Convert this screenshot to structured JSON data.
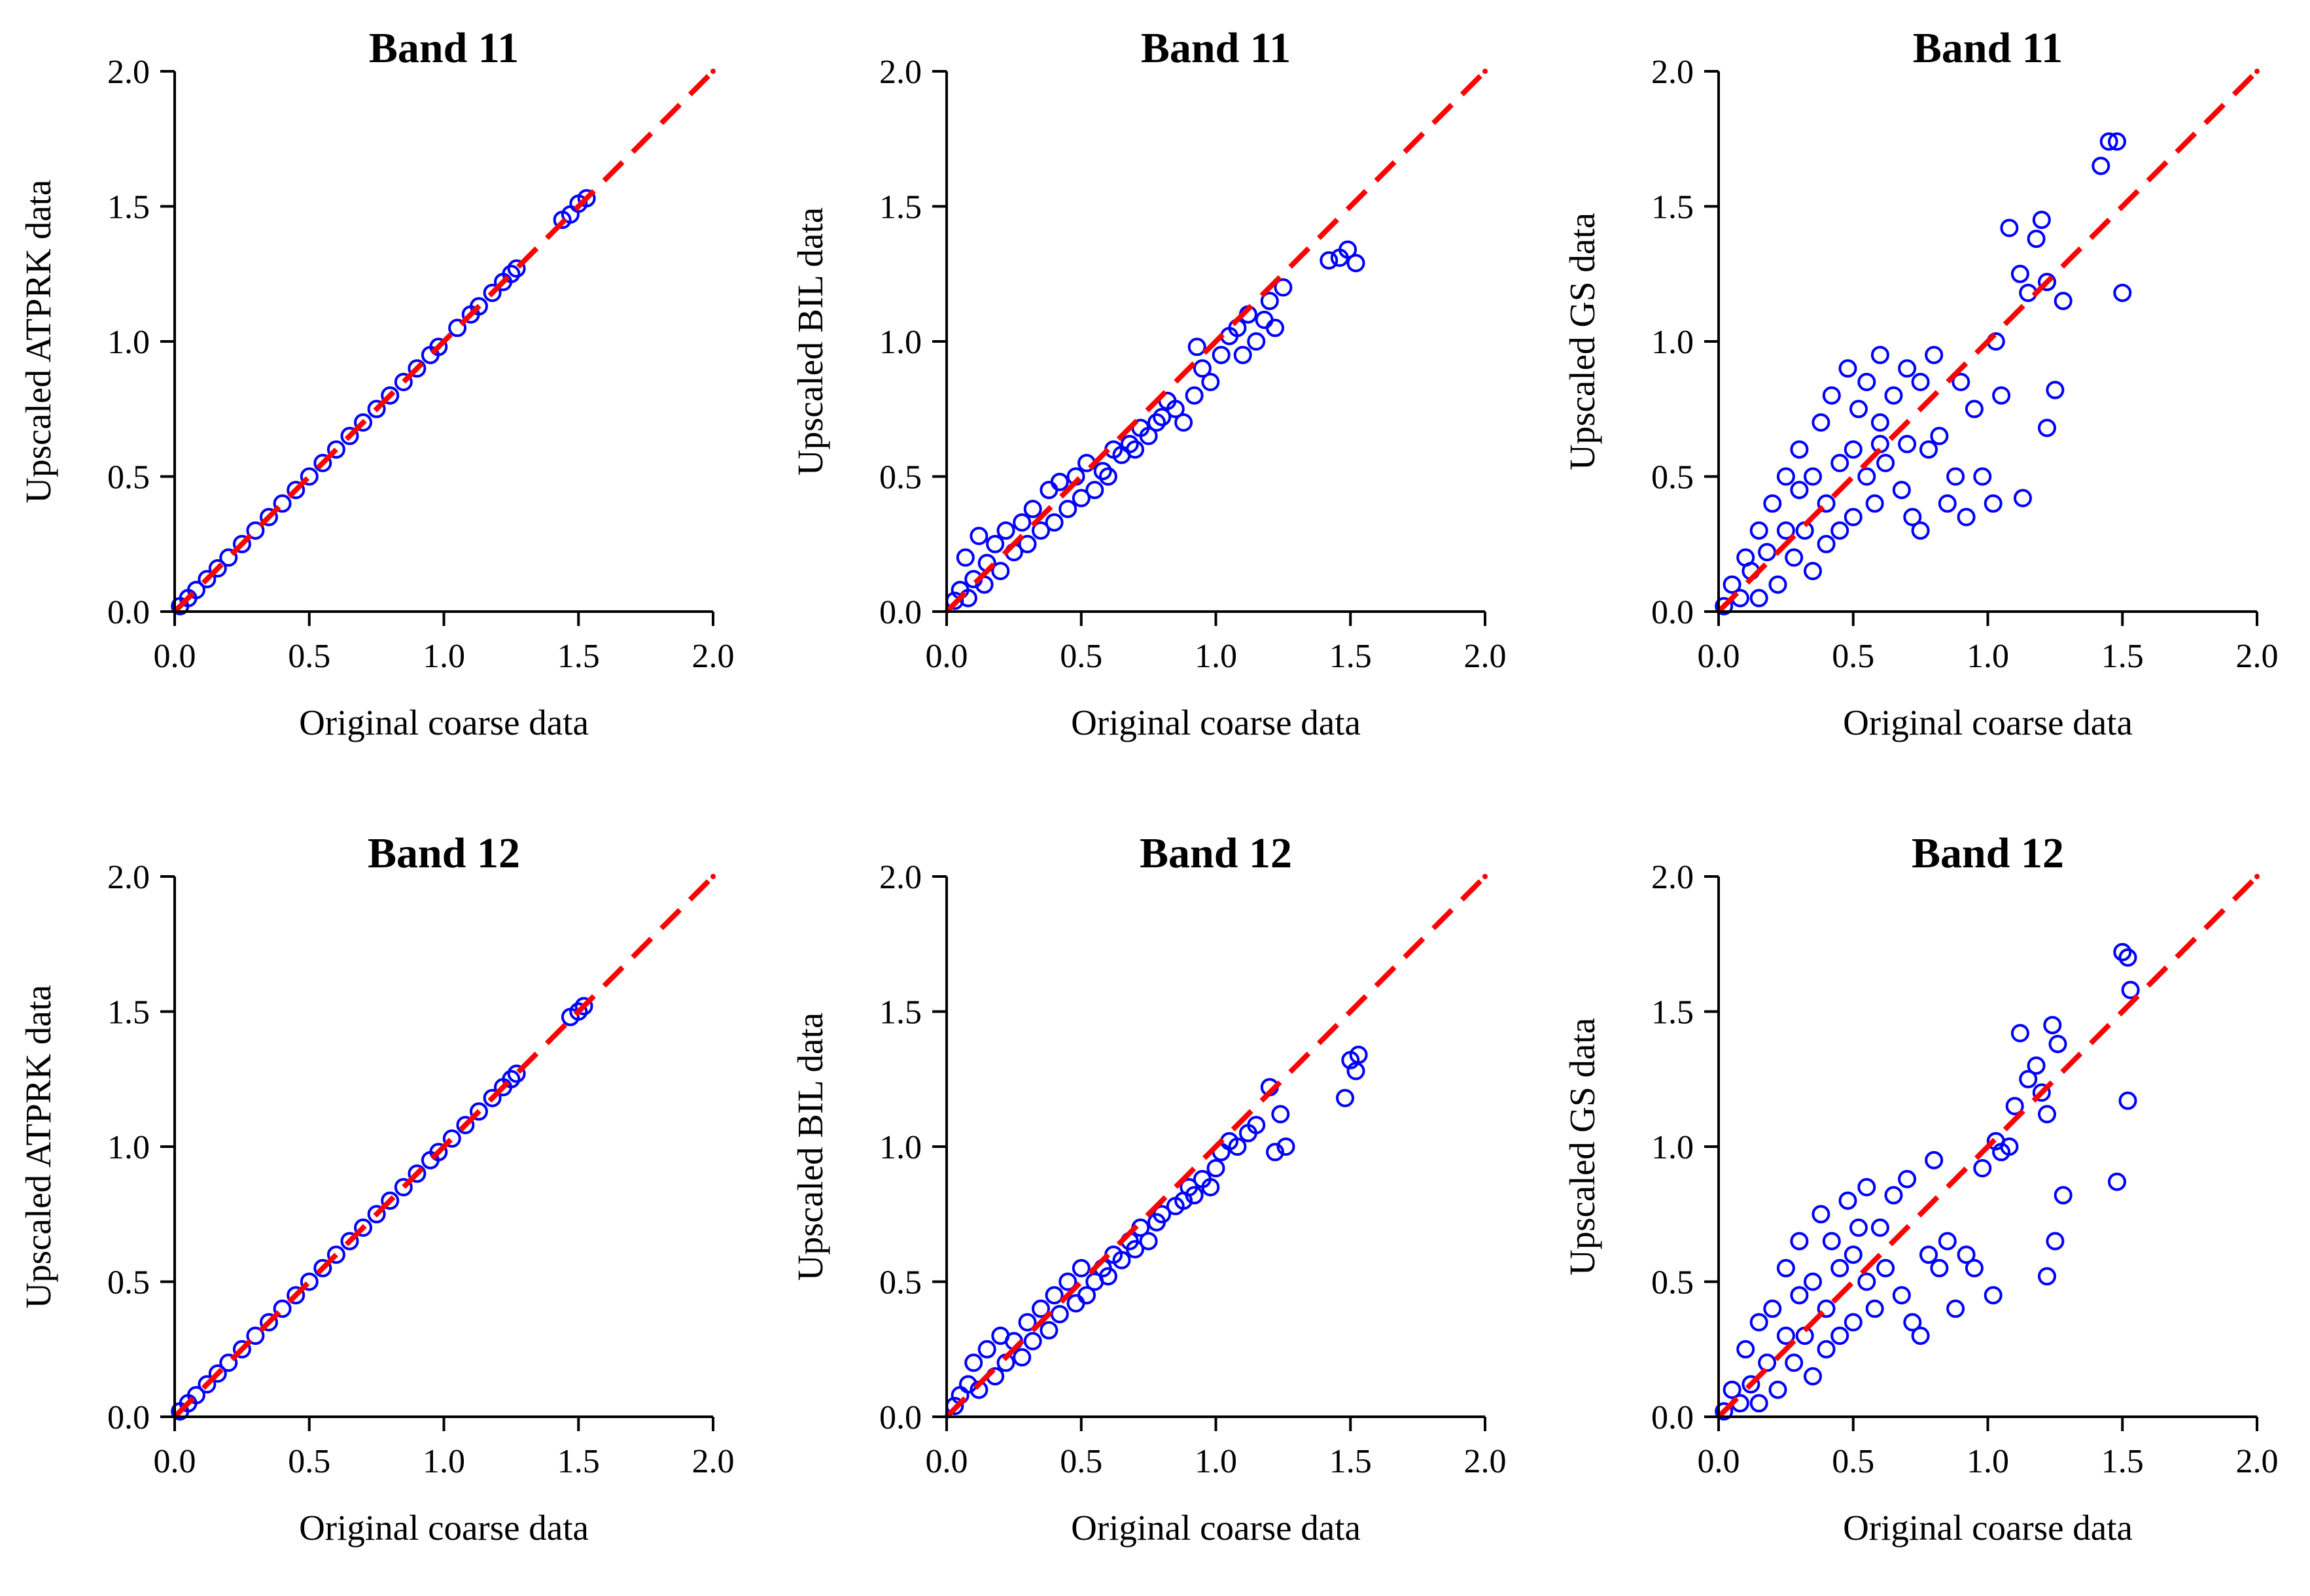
{
  "figure": {
    "colors": {
      "points": "#0000ff",
      "reference_line": "#ff0000",
      "axes": "#000000"
    }
  },
  "chart_data": [
    {
      "type": "scatter",
      "method": "ATPRK",
      "title": "Band 11",
      "xlabel": "Original coarse data",
      "ylabel": "Upscaled ATPRK data",
      "xlim": [
        0,
        2
      ],
      "ylim": [
        0,
        2
      ],
      "xticks": [
        "0.0",
        "0.5",
        "1.0",
        "1.5",
        "2.0"
      ],
      "yticks": [
        "0.0",
        "0.5",
        "1.0",
        "1.5",
        "2.0"
      ],
      "reference_line": {
        "style": "dashed",
        "x": [
          0,
          2
        ],
        "y": [
          0,
          2
        ]
      },
      "points": [
        [
          0.02,
          0.02
        ],
        [
          0.05,
          0.05
        ],
        [
          0.08,
          0.08
        ],
        [
          0.12,
          0.12
        ],
        [
          0.16,
          0.16
        ],
        [
          0.2,
          0.2
        ],
        [
          0.25,
          0.25
        ],
        [
          0.3,
          0.3
        ],
        [
          0.35,
          0.35
        ],
        [
          0.4,
          0.4
        ],
        [
          0.45,
          0.45
        ],
        [
          0.5,
          0.5
        ],
        [
          0.55,
          0.55
        ],
        [
          0.6,
          0.6
        ],
        [
          0.65,
          0.65
        ],
        [
          0.7,
          0.7
        ],
        [
          0.75,
          0.75
        ],
        [
          0.8,
          0.8
        ],
        [
          0.85,
          0.85
        ],
        [
          0.9,
          0.9
        ],
        [
          0.95,
          0.95
        ],
        [
          0.98,
          0.98
        ],
        [
          1.05,
          1.05
        ],
        [
          1.1,
          1.1
        ],
        [
          1.13,
          1.13
        ],
        [
          1.18,
          1.18
        ],
        [
          1.22,
          1.22
        ],
        [
          1.25,
          1.25
        ],
        [
          1.27,
          1.27
        ],
        [
          1.44,
          1.45
        ],
        [
          1.47,
          1.47
        ],
        [
          1.5,
          1.51
        ],
        [
          1.53,
          1.53
        ]
      ]
    },
    {
      "type": "scatter",
      "method": "BIL",
      "title": "Band 11",
      "xlabel": "Original coarse data",
      "ylabel": "Upscaled BIL data",
      "xlim": [
        0,
        2
      ],
      "ylim": [
        0,
        2
      ],
      "xticks": [
        "0.0",
        "0.5",
        "1.0",
        "1.5",
        "2.0"
      ],
      "yticks": [
        "0.0",
        "0.5",
        "1.0",
        "1.5",
        "2.0"
      ],
      "reference_line": {
        "style": "dashed",
        "x": [
          0,
          2
        ],
        "y": [
          0,
          2
        ]
      },
      "points": [
        [
          0.03,
          0.04
        ],
        [
          0.05,
          0.08
        ],
        [
          0.07,
          0.2
        ],
        [
          0.08,
          0.05
        ],
        [
          0.1,
          0.12
        ],
        [
          0.12,
          0.28
        ],
        [
          0.14,
          0.1
        ],
        [
          0.15,
          0.18
        ],
        [
          0.18,
          0.25
        ],
        [
          0.2,
          0.15
        ],
        [
          0.22,
          0.3
        ],
        [
          0.25,
          0.22
        ],
        [
          0.28,
          0.33
        ],
        [
          0.3,
          0.25
        ],
        [
          0.32,
          0.38
        ],
        [
          0.35,
          0.3
        ],
        [
          0.38,
          0.45
        ],
        [
          0.4,
          0.33
        ],
        [
          0.42,
          0.48
        ],
        [
          0.45,
          0.38
        ],
        [
          0.48,
          0.5
        ],
        [
          0.5,
          0.42
        ],
        [
          0.52,
          0.55
        ],
        [
          0.55,
          0.45
        ],
        [
          0.58,
          0.52
        ],
        [
          0.6,
          0.5
        ],
        [
          0.62,
          0.6
        ],
        [
          0.65,
          0.58
        ],
        [
          0.68,
          0.62
        ],
        [
          0.7,
          0.6
        ],
        [
          0.72,
          0.68
        ],
        [
          0.75,
          0.65
        ],
        [
          0.78,
          0.7
        ],
        [
          0.8,
          0.72
        ],
        [
          0.82,
          0.78
        ],
        [
          0.85,
          0.75
        ],
        [
          0.88,
          0.7
        ],
        [
          0.92,
          0.8
        ],
        [
          0.93,
          0.98
        ],
        [
          0.95,
          0.9
        ],
        [
          0.98,
          0.85
        ],
        [
          1.02,
          0.95
        ],
        [
          1.05,
          1.02
        ],
        [
          1.08,
          1.05
        ],
        [
          1.1,
          0.95
        ],
        [
          1.12,
          1.1
        ],
        [
          1.15,
          1.0
        ],
        [
          1.18,
          1.08
        ],
        [
          1.2,
          1.15
        ],
        [
          1.22,
          1.05
        ],
        [
          1.25,
          1.2
        ],
        [
          1.42,
          1.3
        ],
        [
          1.46,
          1.31
        ],
        [
          1.49,
          1.34
        ],
        [
          1.52,
          1.29
        ]
      ]
    },
    {
      "type": "scatter",
      "method": "GS",
      "title": "Band 11",
      "xlabel": "Original coarse data",
      "ylabel": "Upscaled GS data",
      "xlim": [
        0,
        2
      ],
      "ylim": [
        0,
        2
      ],
      "xticks": [
        "0.0",
        "0.5",
        "1.0",
        "1.5",
        "2.0"
      ],
      "yticks": [
        "0.0",
        "0.5",
        "1.0",
        "1.5",
        "2.0"
      ],
      "reference_line": {
        "style": "dashed",
        "x": [
          0,
          2
        ],
        "y": [
          0,
          2
        ]
      },
      "points": [
        [
          0.02,
          0.02
        ],
        [
          0.05,
          0.1
        ],
        [
          0.08,
          0.05
        ],
        [
          0.1,
          0.2
        ],
        [
          0.12,
          0.15
        ],
        [
          0.15,
          0.3
        ],
        [
          0.15,
          0.05
        ],
        [
          0.18,
          0.22
        ],
        [
          0.2,
          0.4
        ],
        [
          0.22,
          0.1
        ],
        [
          0.25,
          0.3
        ],
        [
          0.25,
          0.5
        ],
        [
          0.28,
          0.2
        ],
        [
          0.3,
          0.45
        ],
        [
          0.3,
          0.6
        ],
        [
          0.32,
          0.3
        ],
        [
          0.35,
          0.5
        ],
        [
          0.35,
          0.15
        ],
        [
          0.38,
          0.7
        ],
        [
          0.4,
          0.4
        ],
        [
          0.4,
          0.25
        ],
        [
          0.42,
          0.8
        ],
        [
          0.45,
          0.55
        ],
        [
          0.45,
          0.3
        ],
        [
          0.48,
          0.9
        ],
        [
          0.5,
          0.6
        ],
        [
          0.5,
          0.35
        ],
        [
          0.52,
          0.75
        ],
        [
          0.55,
          0.5
        ],
        [
          0.55,
          0.85
        ],
        [
          0.58,
          0.4
        ],
        [
          0.6,
          0.7
        ],
        [
          0.6,
          0.95
        ],
        [
          0.62,
          0.55
        ],
        [
          0.65,
          0.8
        ],
        [
          0.68,
          0.45
        ],
        [
          0.7,
          0.9
        ],
        [
          0.72,
          0.35
        ],
        [
          0.75,
          0.3
        ],
        [
          0.75,
          0.85
        ],
        [
          0.78,
          0.6
        ],
        [
          0.8,
          0.95
        ],
        [
          0.82,
          0.65
        ],
        [
          0.85,
          0.4
        ],
        [
          0.88,
          0.5
        ],
        [
          0.9,
          0.85
        ],
        [
          0.92,
          0.35
        ],
        [
          0.95,
          0.75
        ],
        [
          0.98,
          0.5
        ],
        [
          1.02,
          0.4
        ],
        [
          1.03,
          1.0
        ],
        [
          1.05,
          0.8
        ],
        [
          1.08,
          1.42
        ],
        [
          1.12,
          1.25
        ],
        [
          1.15,
          1.18
        ],
        [
          1.18,
          1.38
        ],
        [
          1.2,
          1.45
        ],
        [
          1.22,
          1.22
        ],
        [
          1.22,
          0.68
        ],
        [
          1.25,
          0.82
        ],
        [
          1.28,
          1.15
        ],
        [
          1.42,
          1.65
        ],
        [
          1.45,
          1.74
        ],
        [
          1.48,
          1.74
        ],
        [
          1.5,
          1.18
        ],
        [
          1.13,
          0.42
        ],
        [
          0.7,
          0.62
        ],
        [
          0.6,
          0.62
        ]
      ]
    },
    {
      "type": "scatter",
      "method": "ATPRK",
      "title": "Band 12",
      "xlabel": "Original coarse data",
      "ylabel": "Upscaled ATPRK data",
      "xlim": [
        0,
        2
      ],
      "ylim": [
        0,
        2
      ],
      "xticks": [
        "0.0",
        "0.5",
        "1.0",
        "1.5",
        "2.0"
      ],
      "yticks": [
        "0.0",
        "0.5",
        "1.0",
        "1.5",
        "2.0"
      ],
      "reference_line": {
        "style": "dashed",
        "x": [
          0,
          2
        ],
        "y": [
          0,
          2
        ]
      },
      "points": [
        [
          0.02,
          0.02
        ],
        [
          0.05,
          0.05
        ],
        [
          0.08,
          0.08
        ],
        [
          0.12,
          0.12
        ],
        [
          0.16,
          0.16
        ],
        [
          0.2,
          0.2
        ],
        [
          0.25,
          0.25
        ],
        [
          0.3,
          0.3
        ],
        [
          0.35,
          0.35
        ],
        [
          0.4,
          0.4
        ],
        [
          0.45,
          0.45
        ],
        [
          0.5,
          0.5
        ],
        [
          0.55,
          0.55
        ],
        [
          0.6,
          0.6
        ],
        [
          0.65,
          0.65
        ],
        [
          0.7,
          0.7
        ],
        [
          0.75,
          0.75
        ],
        [
          0.8,
          0.8
        ],
        [
          0.85,
          0.85
        ],
        [
          0.9,
          0.9
        ],
        [
          0.95,
          0.95
        ],
        [
          0.98,
          0.98
        ],
        [
          1.03,
          1.03
        ],
        [
          1.08,
          1.08
        ],
        [
          1.13,
          1.13
        ],
        [
          1.18,
          1.18
        ],
        [
          1.22,
          1.22
        ],
        [
          1.25,
          1.25
        ],
        [
          1.27,
          1.27
        ],
        [
          1.47,
          1.48
        ],
        [
          1.5,
          1.5
        ],
        [
          1.52,
          1.52
        ]
      ]
    },
    {
      "type": "scatter",
      "method": "BIL",
      "title": "Band 12",
      "xlabel": "Original coarse data",
      "ylabel": "Upscaled BIL data",
      "xlim": [
        0,
        2
      ],
      "ylim": [
        0,
        2
      ],
      "xticks": [
        "0.0",
        "0.5",
        "1.0",
        "1.5",
        "2.0"
      ],
      "yticks": [
        "0.0",
        "0.5",
        "1.0",
        "1.5",
        "2.0"
      ],
      "reference_line": {
        "style": "dashed",
        "x": [
          0,
          2
        ],
        "y": [
          0,
          2
        ]
      },
      "points": [
        [
          0.03,
          0.04
        ],
        [
          0.05,
          0.08
        ],
        [
          0.08,
          0.12
        ],
        [
          0.1,
          0.2
        ],
        [
          0.12,
          0.1
        ],
        [
          0.15,
          0.25
        ],
        [
          0.18,
          0.15
        ],
        [
          0.2,
          0.3
        ],
        [
          0.22,
          0.2
        ],
        [
          0.25,
          0.28
        ],
        [
          0.28,
          0.22
        ],
        [
          0.3,
          0.35
        ],
        [
          0.32,
          0.28
        ],
        [
          0.35,
          0.4
        ],
        [
          0.38,
          0.32
        ],
        [
          0.4,
          0.45
        ],
        [
          0.42,
          0.38
        ],
        [
          0.45,
          0.5
        ],
        [
          0.48,
          0.42
        ],
        [
          0.5,
          0.55
        ],
        [
          0.52,
          0.45
        ],
        [
          0.55,
          0.5
        ],
        [
          0.58,
          0.55
        ],
        [
          0.6,
          0.52
        ],
        [
          0.62,
          0.6
        ],
        [
          0.65,
          0.58
        ],
        [
          0.68,
          0.65
        ],
        [
          0.7,
          0.62
        ],
        [
          0.72,
          0.7
        ],
        [
          0.75,
          0.65
        ],
        [
          0.78,
          0.72
        ],
        [
          0.8,
          0.75
        ],
        [
          0.85,
          0.78
        ],
        [
          0.88,
          0.8
        ],
        [
          0.9,
          0.85
        ],
        [
          0.92,
          0.82
        ],
        [
          0.95,
          0.88
        ],
        [
          0.98,
          0.85
        ],
        [
          1.0,
          0.92
        ],
        [
          1.02,
          0.98
        ],
        [
          1.05,
          1.02
        ],
        [
          1.08,
          1.0
        ],
        [
          1.12,
          1.05
        ],
        [
          1.15,
          1.08
        ],
        [
          1.2,
          1.22
        ],
        [
          1.22,
          0.98
        ],
        [
          1.24,
          1.12
        ],
        [
          1.26,
          1.0
        ],
        [
          1.48,
          1.18
        ],
        [
          1.5,
          1.32
        ],
        [
          1.52,
          1.28
        ],
        [
          1.53,
          1.34
        ]
      ]
    },
    {
      "type": "scatter",
      "method": "GS",
      "title": "Band 12",
      "xlabel": "Original coarse data",
      "ylabel": "Upscaled GS data",
      "xlim": [
        0,
        2
      ],
      "ylim": [
        0,
        2
      ],
      "xticks": [
        "0.0",
        "0.5",
        "1.0",
        "1.5",
        "2.0"
      ],
      "yticks": [
        "0.0",
        "0.5",
        "1.0",
        "1.5",
        "2.0"
      ],
      "reference_line": {
        "style": "dashed",
        "x": [
          0,
          2
        ],
        "y": [
          0,
          2
        ]
      },
      "points": [
        [
          0.02,
          0.02
        ],
        [
          0.05,
          0.1
        ],
        [
          0.08,
          0.05
        ],
        [
          0.1,
          0.25
        ],
        [
          0.12,
          0.12
        ],
        [
          0.15,
          0.35
        ],
        [
          0.15,
          0.05
        ],
        [
          0.18,
          0.2
        ],
        [
          0.2,
          0.4
        ],
        [
          0.22,
          0.1
        ],
        [
          0.25,
          0.3
        ],
        [
          0.25,
          0.55
        ],
        [
          0.28,
          0.2
        ],
        [
          0.3,
          0.45
        ],
        [
          0.3,
          0.65
        ],
        [
          0.32,
          0.3
        ],
        [
          0.35,
          0.5
        ],
        [
          0.35,
          0.15
        ],
        [
          0.38,
          0.75
        ],
        [
          0.4,
          0.4
        ],
        [
          0.4,
          0.25
        ],
        [
          0.42,
          0.65
        ],
        [
          0.45,
          0.55
        ],
        [
          0.45,
          0.3
        ],
        [
          0.48,
          0.8
        ],
        [
          0.5,
          0.6
        ],
        [
          0.5,
          0.35
        ],
        [
          0.52,
          0.7
        ],
        [
          0.55,
          0.5
        ],
        [
          0.55,
          0.85
        ],
        [
          0.58,
          0.4
        ],
        [
          0.6,
          0.7
        ],
        [
          0.62,
          0.55
        ],
        [
          0.65,
          0.82
        ],
        [
          0.68,
          0.45
        ],
        [
          0.7,
          0.88
        ],
        [
          0.72,
          0.35
        ],
        [
          0.75,
          0.3
        ],
        [
          0.78,
          0.6
        ],
        [
          0.8,
          0.95
        ],
        [
          0.82,
          0.55
        ],
        [
          0.85,
          0.65
        ],
        [
          0.88,
          0.4
        ],
        [
          0.92,
          0.6
        ],
        [
          0.95,
          0.55
        ],
        [
          0.98,
          0.92
        ],
        [
          1.02,
          0.45
        ],
        [
          1.03,
          1.02
        ],
        [
          1.05,
          0.98
        ],
        [
          1.08,
          1.0
        ],
        [
          1.1,
          1.15
        ],
        [
          1.12,
          1.42
        ],
        [
          1.15,
          1.25
        ],
        [
          1.18,
          1.3
        ],
        [
          1.2,
          1.2
        ],
        [
          1.22,
          1.12
        ],
        [
          1.22,
          0.52
        ],
        [
          1.24,
          1.45
        ],
        [
          1.25,
          0.65
        ],
        [
          1.26,
          1.38
        ],
        [
          1.28,
          0.82
        ],
        [
          1.48,
          0.87
        ],
        [
          1.5,
          1.72
        ],
        [
          1.52,
          1.7
        ],
        [
          1.53,
          1.58
        ],
        [
          1.52,
          1.17
        ]
      ]
    }
  ]
}
